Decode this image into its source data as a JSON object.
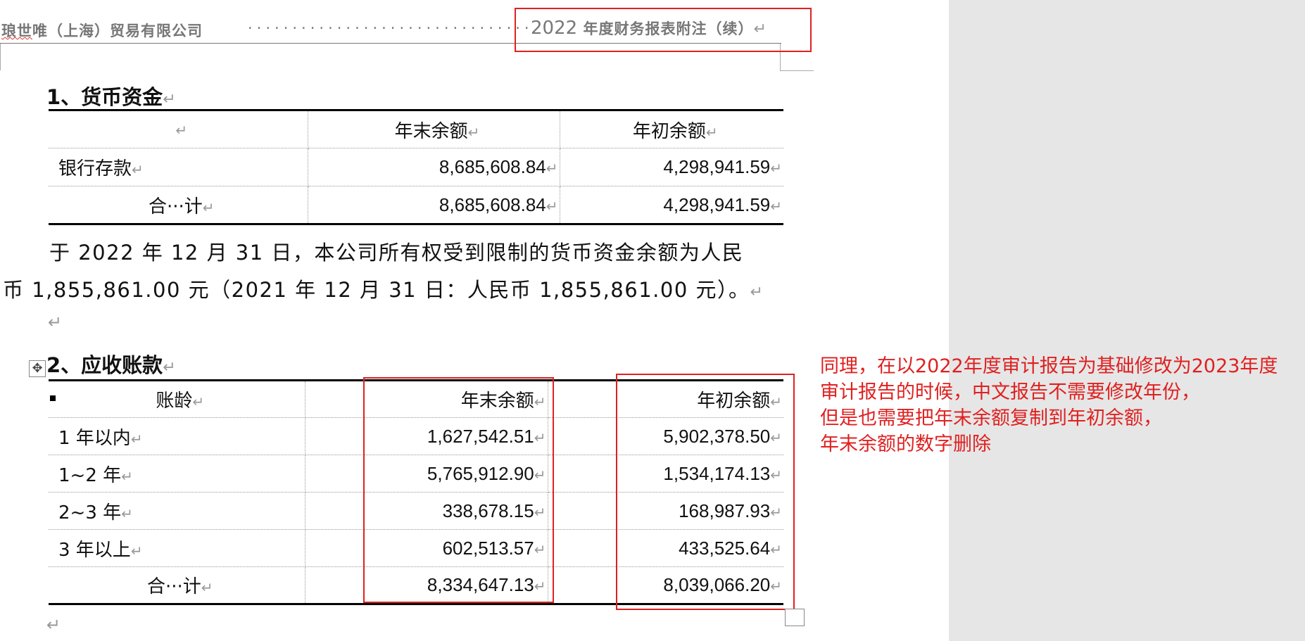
{
  "header": {
    "company_prefix": "琅世",
    "company_rest": "唯（上海）贸易有限公司",
    "dots": "·······································································",
    "year": "2022",
    "title_rest": " 年度财务报表附注（续）",
    "return_mark": "↵"
  },
  "section1": {
    "heading": "1、货币资金",
    "columns": [
      "",
      "年末余额",
      "年初余额"
    ],
    "rows": [
      {
        "label": "银行存款",
        "end": "8,685,608.84",
        "begin": "4,298,941.59"
      },
      {
        "label": "合···计",
        "end": "8,685,608.84",
        "begin": "4,298,941.59"
      }
    ],
    "paragraph_line1": "于 2022 年 12 月 31 日，本公司所有权受到限制的货币资金余额为人民",
    "paragraph_line2": "币 1,855,861.00 元（2021 年 12 月 31 日：人民币 1,855,861.00 元）。"
  },
  "section2": {
    "heading": "2、应收账款",
    "columns": [
      "账龄",
      "年末余额",
      "年初余额"
    ],
    "rows": [
      {
        "label": "1 年以内",
        "end": "1,627,542.51",
        "begin": "5,902,378.50"
      },
      {
        "label": "1~2 年",
        "end": "5,765,912.90",
        "begin": "1,534,174.13"
      },
      {
        "label": "2~3 年",
        "end": "338,678.15",
        "begin": "168,987.93"
      },
      {
        "label": "3 年以上",
        "end": "602,513.57",
        "begin": "433,525.64"
      },
      {
        "label": "合···计",
        "end": "8,334,647.13",
        "begin": "8,039,066.20"
      }
    ]
  },
  "comment": {
    "lines": [
      "同理，在以2022年度审计报告为基础修改为2023年度",
      "审计报告的时候，中文报告不需要修改年份，",
      "但是也需要把年末余额复制到年初余额，",
      "年末余额的数字删除"
    ],
    "color": "#e02020"
  },
  "marks": {
    "return": "↵",
    "move_icon": "✥"
  }
}
